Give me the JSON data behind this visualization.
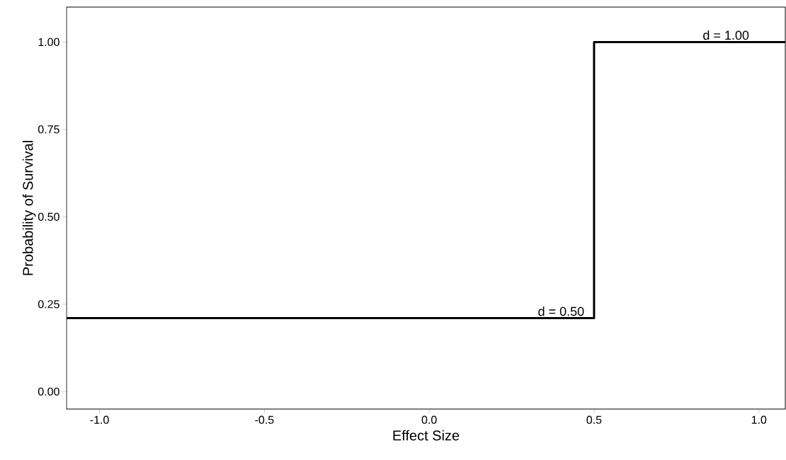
{
  "chart_data": {
    "type": "step",
    "xlabel": "Effect Size",
    "ylabel": "Probability of Survival",
    "x": [
      -1.1,
      0.5,
      1.08
    ],
    "series": [
      {
        "color": "#000000",
        "values": [
          0.21,
          1.0,
          1.0
        ]
      }
    ],
    "xlim": [
      -1.1,
      1.08
    ],
    "ylim": [
      -0.05,
      1.1
    ],
    "xticks": [
      {
        "value": -1.0,
        "label": "-1.0"
      },
      {
        "value": -0.5,
        "label": "-0.5"
      },
      {
        "value": 0.0,
        "label": "0.0"
      },
      {
        "value": 0.5,
        "label": "0.5"
      },
      {
        "value": 1.0,
        "label": "1.0"
      }
    ],
    "yticks": [
      {
        "value": 0,
        "label": "0.00"
      },
      {
        "value": 0.25,
        "label": "0.25"
      },
      {
        "value": 0.5,
        "label": "0.50"
      },
      {
        "value": 0.75,
        "label": "0.75"
      },
      {
        "value": 1.0,
        "label": "1.00"
      }
    ],
    "annotations": [
      {
        "text": "d = 0.50",
        "x": 0.4,
        "y": 0.21
      },
      {
        "text": "d = 1.00",
        "x": 0.9,
        "y": 1.0
      }
    ],
    "grid": false
  }
}
